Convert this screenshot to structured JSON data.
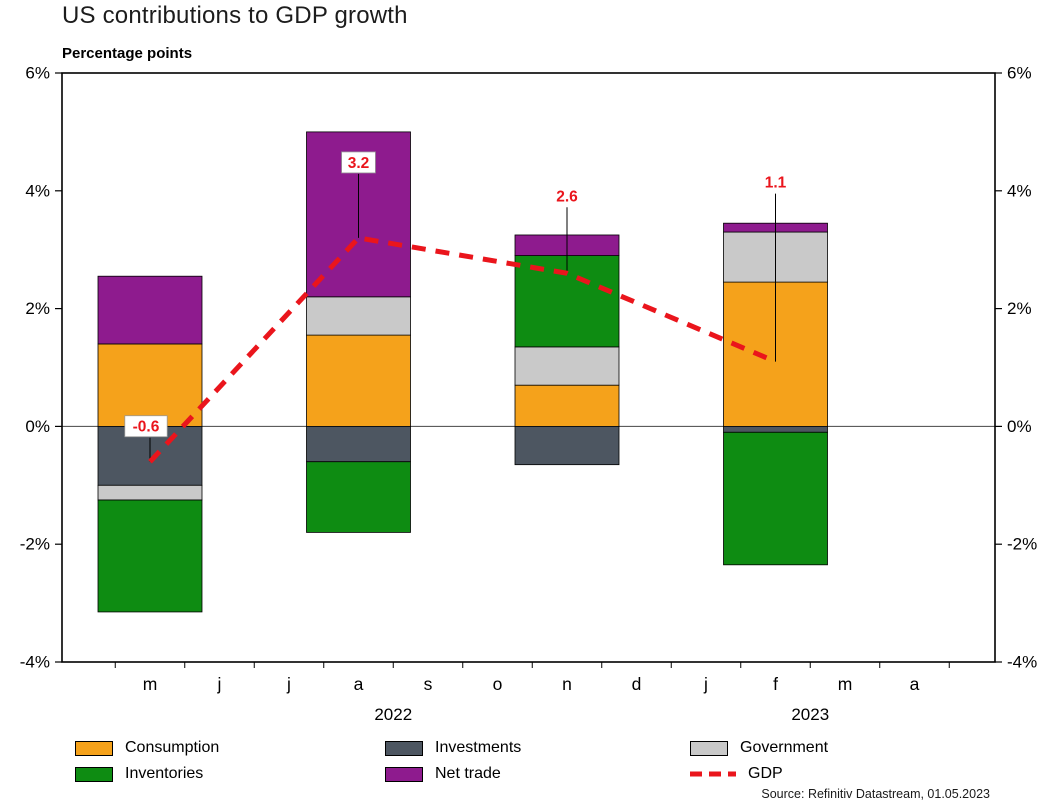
{
  "title": "US contributions to GDP growth",
  "subtitle": "Percentage points",
  "source": "Source: Refinitiv Datastream, 01.05.2023",
  "chart_data": {
    "type": "bar",
    "stacked": true,
    "title": "US contributions to GDP growth",
    "ylabel": "Percentage points",
    "ylim": [
      -4,
      6
    ],
    "grid": false,
    "legend_position": "bottom",
    "yticks": [
      {
        "v": 6,
        "label": "6%"
      },
      {
        "v": 4,
        "label": "4%"
      },
      {
        "v": 2,
        "label": "2%"
      },
      {
        "v": 0,
        "label": "0%"
      },
      {
        "v": -2,
        "label": "-2%"
      },
      {
        "v": -4,
        "label": "-4%"
      }
    ],
    "x_month_labels": [
      "m",
      "j",
      "j",
      "a",
      "s",
      "o",
      "n",
      "d",
      "j",
      "f",
      "m",
      "a"
    ],
    "year_labels": [
      {
        "label": "2022",
        "between": [
          3,
          4
        ]
      },
      {
        "label": "2023",
        "between": [
          9,
          10
        ]
      }
    ],
    "bar_month_index": [
      0,
      3,
      6,
      9
    ],
    "series": [
      {
        "name": "Consumption",
        "color": "#F5A21B",
        "values": [
          1.4,
          1.55,
          0.7,
          2.45
        ]
      },
      {
        "name": "Investments",
        "color": "#4D5661",
        "values": [
          -1.0,
          -0.6,
          -0.65,
          -0.1
        ]
      },
      {
        "name": "Government",
        "color": "#C9C9C9",
        "values": [
          -0.25,
          0.65,
          0.65,
          0.85
        ]
      },
      {
        "name": "Inventories",
        "color": "#0E8C12",
        "values": [
          -1.9,
          -1.2,
          1.55,
          -2.25
        ]
      },
      {
        "name": "Net trade",
        "color": "#8E1B8E",
        "values": [
          1.15,
          2.8,
          0.35,
          0.15
        ]
      }
    ],
    "line_series": {
      "name": "GDP",
      "color": "#EA151C",
      "style": "dashed",
      "values": [
        -0.6,
        3.2,
        2.6,
        1.1
      ],
      "labels": [
        "-0.6",
        "3.2",
        "2.6",
        "1.1"
      ]
    }
  },
  "legend": {
    "items": [
      {
        "label": "Consumption",
        "color": "#F5A21B",
        "type": "rect"
      },
      {
        "label": "Investments",
        "color": "#4D5661",
        "type": "rect"
      },
      {
        "label": "Government",
        "color": "#C9C9C9",
        "type": "rect"
      },
      {
        "label": "Inventories",
        "color": "#0E8C12",
        "type": "rect"
      },
      {
        "label": "Net trade",
        "color": "#8E1B8E",
        "type": "rect"
      },
      {
        "label": "GDP",
        "color": "#EA151C",
        "type": "line"
      }
    ]
  }
}
